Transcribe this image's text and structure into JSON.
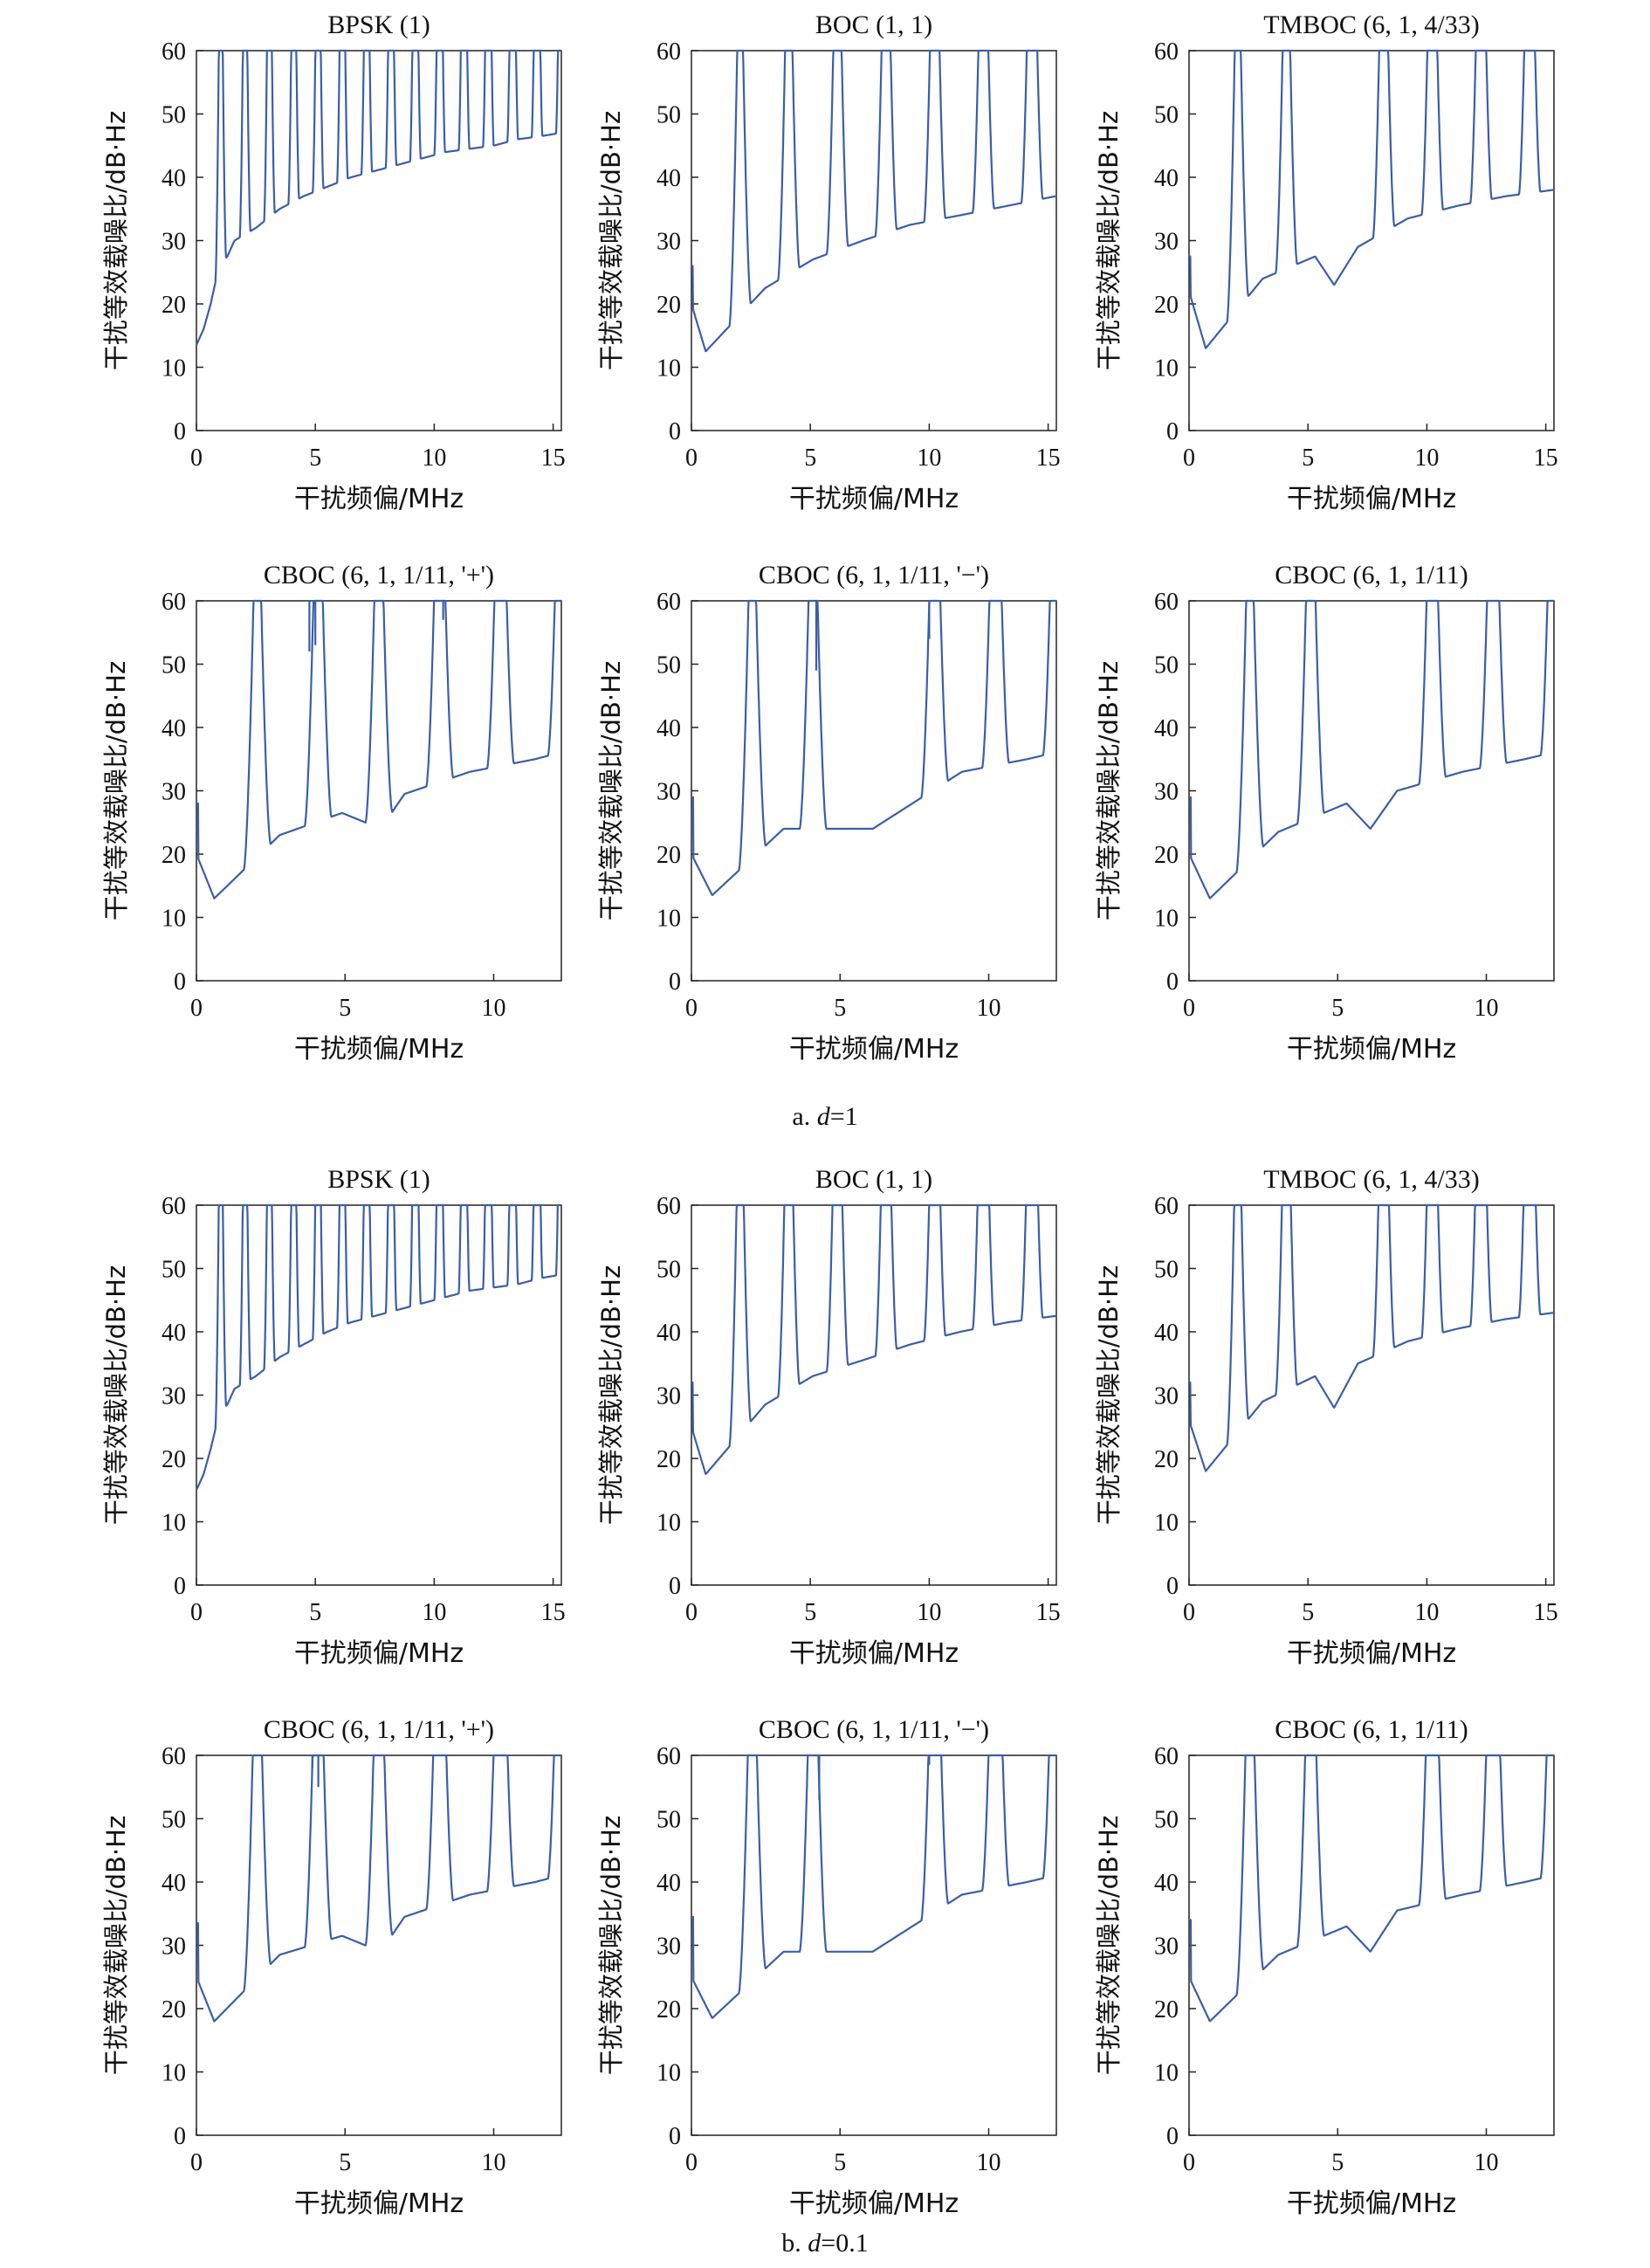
{
  "figure": {
    "ylabel": "干扰等效载噪比/dB·Hz",
    "xlabel": "干扰频偏/MHz",
    "line_color": "#3a5ea8",
    "captions": [
      {
        "prefix": "a. ",
        "var": "d",
        "suffix": "=1"
      },
      {
        "prefix": "b. ",
        "var": "d",
        "suffix": "=0.1"
      }
    ]
  },
  "chart_data": [
    {
      "group": "a",
      "type": "line",
      "title": "BPSK (1)",
      "xlabel": "干扰频偏/MHz",
      "ylabel": "干扰等效载噪比/dB·Hz",
      "xlim": [
        0,
        15.345
      ],
      "ylim": [
        0,
        60
      ],
      "xticks": [
        0,
        5,
        10,
        15
      ],
      "yticks": [
        0,
        10,
        20,
        30,
        40,
        50,
        60
      ],
      "series": [
        {
          "peak_spacing": 1.023,
          "peaks": [
            1.023,
            2.046,
            3.069,
            4.092,
            5.115,
            6.138,
            7.161,
            8.184,
            9.207,
            10.23,
            11.253,
            12.276,
            13.299,
            14.322,
            15.345
          ],
          "x": [
            0,
            0.3,
            0.6,
            0.95,
            1.3,
            1.6,
            2.5,
            3.5,
            4.5,
            5.5,
            6.5,
            7.5,
            8.5,
            9.5,
            10.5,
            11.5,
            12.5,
            13.5,
            14.5,
            15.3
          ],
          "y": [
            13.5,
            16,
            20,
            26,
            27.5,
            30,
            32,
            35,
            37,
            38.5,
            40,
            41,
            42,
            43,
            44,
            44.5,
            45,
            46,
            46.5,
            47
          ]
        }
      ]
    },
    {
      "group": "a",
      "type": "line",
      "title": "BOC (1, 1)",
      "xlabel": "干扰频偏/MHz",
      "ylabel": "干扰等效载噪比/dB·Hz",
      "xlim": [
        0,
        15.345
      ],
      "ylim": [
        0,
        60
      ],
      "xticks": [
        0,
        5,
        10,
        15
      ],
      "yticks": [
        0,
        10,
        20,
        30,
        40,
        50,
        60
      ],
      "series": [
        {
          "peak_spacing": 2.046,
          "peaks": [
            2.046,
            4.092,
            6.138,
            8.184,
            10.23,
            12.276,
            14.322
          ],
          "spike_at_zero": 26,
          "x": [
            0,
            0.6,
            3.1,
            5.1,
            7.2,
            9.2,
            11.3,
            13.3,
            15.3
          ],
          "y": [
            20,
            12.5,
            22.5,
            27,
            30,
            32.5,
            34,
            35.5,
            37
          ]
        }
      ]
    },
    {
      "group": "a",
      "type": "line",
      "title": "TMBOC (6, 1, 4/33)",
      "xlabel": "干扰频偏/MHz",
      "ylabel": "干扰等效载噪比/dB·Hz",
      "xlim": [
        0,
        15.345
      ],
      "ylim": [
        0,
        60
      ],
      "xticks": [
        0,
        5,
        10,
        15
      ],
      "yticks": [
        0,
        10,
        20,
        30,
        40,
        50,
        60
      ],
      "series": [
        {
          "peak_spacing": 2.046,
          "peaks": [
            2.046,
            4.092,
            8.184,
            10.23,
            12.276,
            14.322
          ],
          "spike_at_zero": 27.5,
          "x": [
            0,
            0.7,
            3.1,
            5.3,
            6.1,
            7.1,
            9.2,
            11.3,
            13.3,
            15.3
          ],
          "y": [
            22,
            13,
            24,
            27.5,
            23,
            29,
            33.5,
            35.5,
            37,
            38
          ]
        }
      ]
    },
    {
      "group": "a",
      "type": "line",
      "title": "CBOC (6, 1, 1/11, '+')",
      "xlabel": "干扰频偏/MHz",
      "ylabel": "干扰等效载噪比/dB·Hz",
      "xlim": [
        0,
        12.276
      ],
      "ylim": [
        0,
        60
      ],
      "xticks": [
        0,
        5,
        10
      ],
      "yticks": [
        0,
        10,
        20,
        30,
        40,
        50,
        60
      ],
      "series": [
        {
          "peak_spacing": 2.046,
          "peaks": [
            2.046,
            4.092,
            6.138,
            8.184,
            10.23,
            12.276
          ],
          "spike_at_zero": 28,
          "notches": [
            [
              3.8,
              52
            ],
            [
              4.0,
              53
            ],
            [
              8.3,
              57
            ]
          ],
          "x": [
            0,
            0.6,
            2.8,
            4.9,
            6.2,
            7.0,
            9.2,
            11.4,
            12.2
          ],
          "y": [
            20,
            13,
            23,
            26.5,
            24,
            29.5,
            33,
            35,
            36
          ]
        }
      ]
    },
    {
      "group": "a",
      "type": "line",
      "title": "CBOC (6, 1, 1/11, '−')",
      "xlabel": "干扰频偏/MHz",
      "ylabel": "干扰等效载噪比/dB·Hz",
      "xlim": [
        0,
        12.276
      ],
      "ylim": [
        0,
        60
      ],
      "xticks": [
        0,
        5,
        10
      ],
      "yticks": [
        0,
        10,
        20,
        30,
        40,
        50,
        60
      ],
      "series": [
        {
          "peak_spacing": 2.046,
          "peaks": [
            2.046,
            4.092,
            8.184,
            10.23,
            12.276
          ],
          "spike_at_zero": 29,
          "notches": [
            [
              4.2,
              49
            ],
            [
              8.0,
              54
            ]
          ],
          "x": [
            0,
            0.7,
            3.1,
            6.1,
            9.1,
            11.3,
            12.2
          ],
          "y": [
            20,
            13.5,
            24,
            24,
            33,
            35,
            36
          ]
        }
      ]
    },
    {
      "group": "a",
      "type": "line",
      "title": "CBOC (6, 1, 1/11)",
      "xlabel": "干扰频偏/MHz",
      "ylabel": "干扰等效载噪比/dB·Hz",
      "xlim": [
        0,
        12.276
      ],
      "ylim": [
        0,
        60
      ],
      "xticks": [
        0,
        5,
        10
      ],
      "yticks": [
        0,
        10,
        20,
        30,
        40,
        50,
        60
      ],
      "series": [
        {
          "peak_spacing": 2.046,
          "peaks": [
            2.046,
            4.092,
            8.184,
            10.23,
            12.276
          ],
          "spike_at_zero": 29,
          "x": [
            0,
            0.7,
            3.0,
            5.3,
            6.1,
            7.0,
            9.2,
            11.3,
            12.2
          ],
          "y": [
            20,
            13,
            23.5,
            28,
            24,
            30,
            33,
            35,
            36
          ]
        }
      ]
    },
    {
      "group": "b",
      "type": "line",
      "title": "BPSK (1)",
      "xlabel": "干扰频偏/MHz",
      "ylabel": "干扰等效载噪比/dB·Hz",
      "xlim": [
        0,
        15.345
      ],
      "ylim": [
        0,
        60
      ],
      "xticks": [
        0,
        5,
        10,
        15
      ],
      "yticks": [
        0,
        10,
        20,
        30,
        40,
        50,
        60
      ],
      "series": [
        {
          "peak_spacing": 1.023,
          "peaks": [
            1.023,
            2.046,
            3.069,
            4.092,
            5.115,
            6.138,
            7.161,
            8.184,
            9.207,
            10.23,
            11.253,
            12.276,
            13.299,
            14.322,
            15.345
          ],
          "x": [
            0,
            0.3,
            0.6,
            0.95,
            1.3,
            1.6,
            2.5,
            3.5,
            4.5,
            5.5,
            6.5,
            7.5,
            8.5,
            9.5,
            10.5,
            11.5,
            12.5,
            13.5,
            14.5,
            15.3
          ],
          "y": [
            15,
            17.5,
            21.5,
            27,
            28.5,
            31,
            33,
            36,
            38,
            40,
            41.5,
            42.5,
            43.5,
            44.5,
            45.5,
            46.5,
            47,
            47.5,
            48.5,
            49
          ]
        }
      ]
    },
    {
      "group": "b",
      "type": "line",
      "title": "BOC (1, 1)",
      "xlabel": "干扰频偏/MHz",
      "ylabel": "干扰等效载噪比/dB·Hz",
      "xlim": [
        0,
        15.345
      ],
      "ylim": [
        0,
        60
      ],
      "xticks": [
        0,
        5,
        10,
        15
      ],
      "yticks": [
        0,
        10,
        20,
        30,
        40,
        50,
        60
      ],
      "series": [
        {
          "peak_spacing": 2.046,
          "peaks": [
            2.046,
            4.092,
            6.138,
            8.184,
            10.23,
            12.276,
            14.322
          ],
          "spike_at_zero": 32,
          "x": [
            0,
            0.6,
            3.1,
            5.1,
            7.2,
            9.2,
            11.3,
            13.3,
            15.3
          ],
          "y": [
            25,
            17.5,
            28.5,
            33,
            35.5,
            38,
            40,
            41.5,
            42.5
          ]
        }
      ]
    },
    {
      "group": "b",
      "type": "line",
      "title": "TMBOC (6, 1, 4/33)",
      "xlabel": "干扰频偏/MHz",
      "ylabel": "干扰等效载噪比/dB·Hz",
      "xlim": [
        0,
        15.345
      ],
      "ylim": [
        0,
        60
      ],
      "xticks": [
        0,
        5,
        10,
        15
      ],
      "yticks": [
        0,
        10,
        20,
        30,
        40,
        50,
        60
      ],
      "series": [
        {
          "peak_spacing": 2.046,
          "peaks": [
            2.046,
            4.092,
            8.184,
            10.23,
            12.276,
            14.322
          ],
          "spike_at_zero": 32,
          "x": [
            0,
            0.7,
            3.1,
            5.3,
            6.1,
            7.1,
            9.2,
            11.3,
            13.3,
            15.3
          ],
          "y": [
            26,
            18,
            29,
            33,
            28,
            35,
            38.5,
            40.5,
            42,
            43
          ]
        }
      ]
    },
    {
      "group": "b",
      "type": "line",
      "title": "CBOC (6, 1, 1/11, '+')",
      "xlabel": "干扰频偏/MHz",
      "ylabel": "干扰等效载噪比/dB·Hz",
      "xlim": [
        0,
        12.276
      ],
      "ylim": [
        0,
        60
      ],
      "xticks": [
        0,
        5,
        10
      ],
      "yticks": [
        0,
        10,
        20,
        30,
        40,
        50,
        60
      ],
      "series": [
        {
          "peak_spacing": 2.046,
          "peaks": [
            2.046,
            4.092,
            6.138,
            8.184,
            10.23,
            12.276
          ],
          "spike_at_zero": 33.5,
          "notches": [
            [
              3.9,
              58
            ],
            [
              4.1,
              55
            ]
          ],
          "x": [
            0,
            0.6,
            2.8,
            4.9,
            6.2,
            7.0,
            9.2,
            11.4,
            12.2
          ],
          "y": [
            25,
            18,
            28.5,
            31.5,
            29,
            34.5,
            38,
            40,
            41
          ]
        }
      ]
    },
    {
      "group": "b",
      "type": "line",
      "title": "CBOC (6, 1, 1/11, '−')",
      "xlabel": "干扰频偏/MHz",
      "ylabel": "干扰等效载噪比/dB·Hz",
      "xlim": [
        0,
        12.276
      ],
      "ylim": [
        0,
        60
      ],
      "xticks": [
        0,
        5,
        10
      ],
      "yticks": [
        0,
        10,
        20,
        30,
        40,
        50,
        60
      ],
      "series": [
        {
          "peak_spacing": 2.046,
          "peaks": [
            2.046,
            4.092,
            8.184,
            10.23,
            12.276
          ],
          "spike_at_zero": 34.5,
          "notches": [
            [
              4.3,
              53
            ],
            [
              8.0,
              58.5
            ]
          ],
          "x": [
            0,
            0.7,
            3.1,
            6.1,
            9.1,
            11.3,
            12.2
          ],
          "y": [
            25,
            18.5,
            29,
            29,
            38,
            40,
            41
          ]
        }
      ]
    },
    {
      "group": "b",
      "type": "line",
      "title": "CBOC (6, 1, 1/11)",
      "xlabel": "干扰频偏/MHz",
      "ylabel": "干扰等效载噪比/dB·Hz",
      "xlim": [
        0,
        12.276
      ],
      "ylim": [
        0,
        60
      ],
      "xticks": [
        0,
        5,
        10
      ],
      "yticks": [
        0,
        10,
        20,
        30,
        40,
        50,
        60
      ],
      "series": [
        {
          "peak_spacing": 2.046,
          "peaks": [
            2.046,
            4.092,
            8.184,
            10.23,
            12.276
          ],
          "spike_at_zero": 34,
          "x": [
            0,
            0.7,
            3.0,
            5.3,
            6.1,
            7.0,
            9.2,
            11.3,
            12.2
          ],
          "y": [
            25,
            18,
            28.5,
            33,
            29,
            35.5,
            38,
            40,
            41
          ]
        }
      ]
    }
  ]
}
